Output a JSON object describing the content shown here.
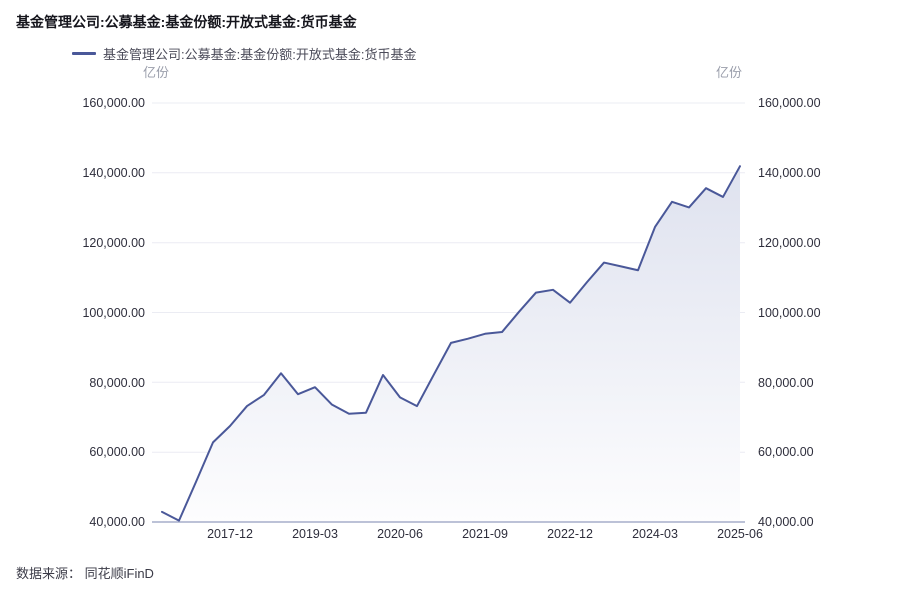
{
  "title": "基金管理公司:公募基金:基金份额:开放式基金:货币基金",
  "legend": {
    "label": "基金管理公司:公募基金:基金份额:开放式基金:货币基金"
  },
  "unit_left": "亿份",
  "unit_right": "亿份",
  "source": "数据来源： 同花顺iFinD",
  "colors": {
    "line": "#4a5899",
    "area_top": "#d9ddec",
    "area_bottom": "#fdfdfe",
    "grid": "#ebecf3",
    "axis": "#a6adca"
  },
  "chart_data": {
    "type": "area",
    "title": "基金管理公司:公募基金:基金份额:开放式基金:货币基金",
    "ylabel": "亿份",
    "xlabel": "",
    "legend_position": "top-left",
    "grid": true,
    "ylim": [
      40000,
      160000
    ],
    "y_tick_step": 20000,
    "x": [
      "2016-12",
      "2017-03",
      "2017-06",
      "2017-09",
      "2017-12",
      "2018-03",
      "2018-06",
      "2018-09",
      "2018-12",
      "2019-03",
      "2019-06",
      "2019-09",
      "2019-12",
      "2020-03",
      "2020-06",
      "2020-09",
      "2020-12",
      "2021-03",
      "2021-06",
      "2021-09",
      "2021-12",
      "2022-03",
      "2022-06",
      "2022-09",
      "2022-12",
      "2023-03",
      "2023-06",
      "2023-09",
      "2023-12",
      "2024-03",
      "2024-06",
      "2024-09",
      "2024-12",
      "2025-03",
      "2025-06"
    ],
    "values": [
      42900,
      40400,
      51500,
      62800,
      67500,
      73200,
      76400,
      82600,
      76600,
      78600,
      73600,
      71000,
      71300,
      82100,
      75700,
      73200,
      82300,
      91300,
      92500,
      93900,
      94400,
      100200,
      105700,
      106500,
      102800,
      108700,
      114300,
      113200,
      112100,
      124500,
      131700,
      130100,
      135600,
      133100,
      141900
    ],
    "x_tick_labels": [
      "2017-12",
      "2019-03",
      "2020-06",
      "2021-09",
      "2022-12",
      "2024-03",
      "2025-06"
    ],
    "y_tick_labels": [
      "160,000.00",
      "140,000.00",
      "120,000.00",
      "100,000.00",
      "80,000.00",
      "60,000.00",
      "40,000.00"
    ]
  }
}
